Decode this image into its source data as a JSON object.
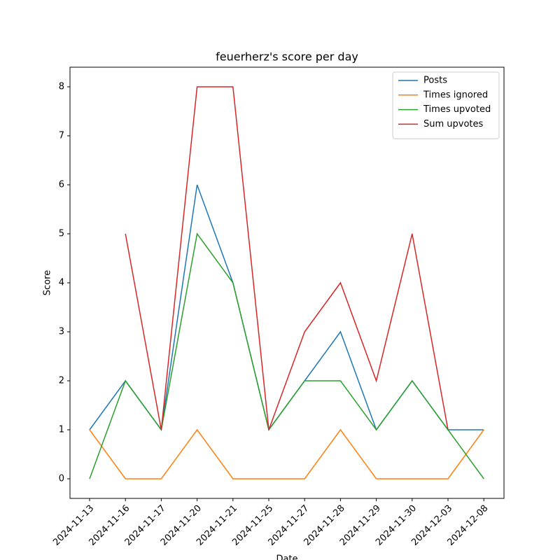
{
  "chart_data": {
    "type": "line",
    "title": "feuerherz's score per day",
    "x_label": "Date",
    "y_label": "Score",
    "categories": [
      "2024-11-13",
      "2024-11-16",
      "2024-11-17",
      "2024-11-20",
      "2024-11-21",
      "2024-11-25",
      "2024-11-27",
      "2024-11-28",
      "2024-11-29",
      "2024-11-30",
      "2024-12-03",
      "2024-12-08"
    ],
    "series": [
      {
        "name": "Posts",
        "color": "#1f77b4",
        "values": [
          1,
          2,
          1,
          6,
          4,
          1,
          2,
          3,
          1,
          2,
          1,
          1
        ]
      },
      {
        "name": "Times ignored",
        "color": "#ff7f0e",
        "values": [
          1,
          0,
          0,
          1,
          0,
          0,
          0,
          1,
          0,
          0,
          0,
          1
        ]
      },
      {
        "name": "Times upvoted",
        "color": "#2ca02c",
        "values": [
          0,
          2,
          1,
          5,
          4,
          1,
          2,
          2,
          1,
          2,
          1,
          0
        ]
      },
      {
        "name": "Sum upvotes",
        "color": "#d62728",
        "values": [
          null,
          5,
          1,
          8,
          8,
          1,
          3,
          4,
          2,
          5,
          1,
          null
        ]
      }
    ],
    "ylim": [
      -0.4,
      8.4
    ],
    "yticks": [
      0,
      1,
      2,
      3,
      4,
      5,
      6,
      7,
      8
    ],
    "legend": "upper right"
  }
}
